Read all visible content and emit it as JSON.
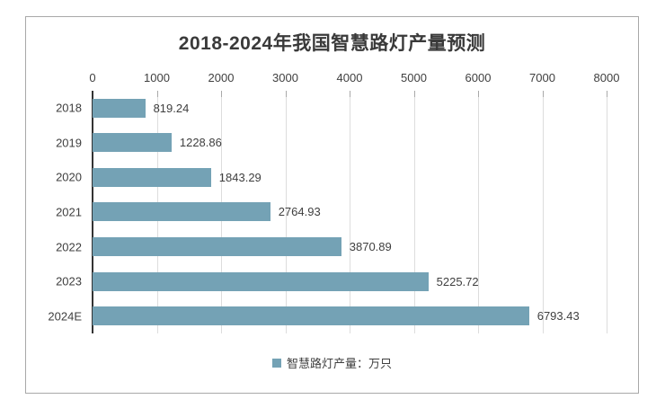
{
  "window": {
    "background": "#FFFFFF",
    "border_color": "#A8A8A8"
  },
  "colors": {
    "bar_fill": "#74A2B5",
    "axis_line": "#333333",
    "gridline": "#DDDDDD",
    "tick": "#A9A9A9",
    "title_text": "#3A3A3A",
    "label_text": "#3F3F3F"
  },
  "chart_data": {
    "type": "bar",
    "orientation": "horizontal",
    "title": "2018-2024年我国智慧路灯产量预测",
    "categories": [
      "2018",
      "2019",
      "2020",
      "2021",
      "2022",
      "2023",
      "2024E"
    ],
    "values": [
      819.24,
      1228.86,
      1843.29,
      2764.93,
      3870.89,
      5225.72,
      6793.43
    ],
    "value_labels": [
      "819.24",
      "1228.86",
      "1843.29",
      "2764.93",
      "3870.89",
      "5225.72",
      "6793.43"
    ],
    "xlabel": "",
    "ylabel": "",
    "xlim": [
      0,
      8000
    ],
    "xticks": [
      0,
      1000,
      2000,
      3000,
      4000,
      5000,
      6000,
      7000,
      8000
    ],
    "grid": true,
    "value_axis_position": "top",
    "legend": [
      "智慧路灯产量：万只"
    ],
    "legend_position": "bottom"
  }
}
